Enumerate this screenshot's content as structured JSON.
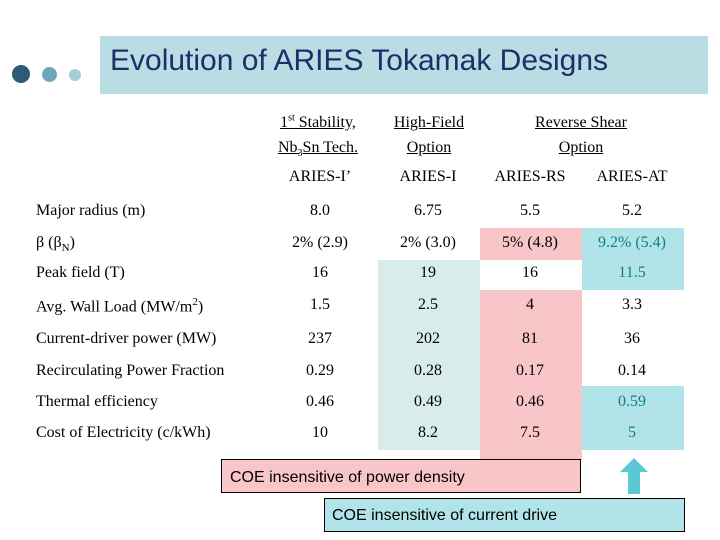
{
  "title": "Evolution of ARIES Tokamak Designs",
  "headers": {
    "col1_line1_pre": "1",
    "col1_line1_sup": "st",
    "col1_line1_post": " Stability,",
    "col1_line2_pre": "Nb",
    "col1_line2_sub": "3",
    "col1_line2_post": "Sn Tech.",
    "col2_line1": "High-Field",
    "col2_line2": "Option",
    "col3_line1": "Reverse Shear",
    "col3_line2": "Option"
  },
  "designs": [
    "ARIES-I’",
    "ARIES-I",
    "ARIES-RS",
    "ARIES-AT"
  ],
  "rows": [
    {
      "label": "Major radius (m)",
      "values": [
        "8.0",
        "6.75",
        "5.5",
        "5.2"
      ]
    },
    {
      "label_pre": "β (β",
      "label_sub": "N",
      "label_post": ")",
      "values": [
        "2% (2.9)",
        "2% (3.0)",
        "5% (4.8)",
        "9.2% (5.4)"
      ]
    },
    {
      "label": "Peak field (T)",
      "values": [
        "16",
        "19",
        "16",
        "11.5"
      ]
    },
    {
      "label_pre": "Avg. Wall Load (MW/m",
      "label_sup": "2",
      "label_post": ")",
      "values": [
        "1.5",
        "2.5",
        "4",
        "3.3"
      ]
    },
    {
      "label": "Current-driver power (MW)",
      "values": [
        "237",
        "202",
        "81",
        "36"
      ]
    },
    {
      "label": "Recirculating Power Fraction",
      "values": [
        "0.29",
        "0.28",
        "0.17",
        "0.14"
      ]
    },
    {
      "label": "Thermal efficiency",
      "values": [
        "0.46",
        "0.49",
        "0.46",
        "0.59"
      ]
    },
    {
      "label": "Cost of Electricity (c/kWh)",
      "values": [
        "10",
        "8.2",
        "7.5",
        "5"
      ]
    }
  ],
  "notes": {
    "note1": "COE insensitive of power density",
    "note2": "COE insensitive of current drive"
  },
  "colors": {
    "title": "#1d2e6b",
    "title_band": "#b9dde2",
    "pink": "#f8c6c8",
    "teal": "#b0e4e8",
    "teal_text": "#127d8a",
    "arrow": "#5cc8d6"
  },
  "icons": [
    "bullet-dot",
    "up-arrow-icon"
  ]
}
